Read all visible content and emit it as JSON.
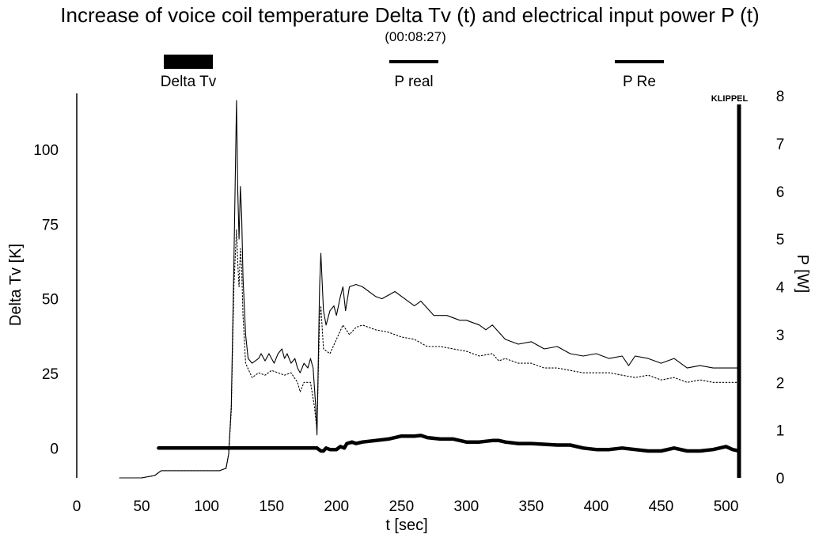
{
  "chart_data": {
    "type": "line",
    "title": "Increase of voice coil temperature Delta Tv (t) and electrical input power P (t)",
    "subtitle": "(00:08:27)",
    "brand": "KLIPPEL",
    "xlabel": "t [sec]",
    "ylabel_left": "Delta Tv [K]",
    "ylabel_right": "P [W]",
    "xlim": [
      0,
      510
    ],
    "ylim_left": [
      -10,
      118
    ],
    "ylim_right": [
      0,
      8
    ],
    "x_ticks": [
      0,
      50,
      100,
      150,
      200,
      250,
      300,
      350,
      400,
      450,
      500
    ],
    "y_left_ticks": [
      0,
      25,
      50,
      75,
      100
    ],
    "y_right_ticks": [
      0,
      1,
      2,
      3,
      4,
      5,
      6,
      7,
      8
    ],
    "legend": [
      {
        "name": "Delta Tv",
        "style": "thick"
      },
      {
        "name": "P real",
        "style": "thin"
      },
      {
        "name": "P Re",
        "style": "thin"
      }
    ],
    "series": [
      {
        "name": "Delta Tv",
        "axis": "left",
        "points": [
          [
            63,
            0
          ],
          [
            100,
            0
          ],
          [
            150,
            0
          ],
          [
            185,
            0
          ],
          [
            188,
            -1
          ],
          [
            190,
            -1
          ],
          [
            192,
            0
          ],
          [
            195,
            -0.5
          ],
          [
            200,
            -0.5
          ],
          [
            203,
            0.5
          ],
          [
            206,
            0
          ],
          [
            208,
            1.5
          ],
          [
            212,
            2
          ],
          [
            215,
            1.5
          ],
          [
            220,
            2
          ],
          [
            230,
            2.5
          ],
          [
            240,
            3
          ],
          [
            250,
            4
          ],
          [
            260,
            4
          ],
          [
            265,
            4.2
          ],
          [
            270,
            3.5
          ],
          [
            280,
            3
          ],
          [
            290,
            3
          ],
          [
            300,
            2
          ],
          [
            310,
            2
          ],
          [
            320,
            2.5
          ],
          [
            325,
            2.5
          ],
          [
            330,
            2
          ],
          [
            340,
            1.5
          ],
          [
            350,
            1.5
          ],
          [
            370,
            1
          ],
          [
            380,
            1
          ],
          [
            390,
            0
          ],
          [
            400,
            -0.5
          ],
          [
            410,
            -0.5
          ],
          [
            420,
            0
          ],
          [
            430,
            -0.5
          ],
          [
            440,
            -1
          ],
          [
            450,
            -1
          ],
          [
            460,
            0
          ],
          [
            470,
            -1
          ],
          [
            480,
            -1
          ],
          [
            490,
            -0.5
          ],
          [
            495,
            0
          ],
          [
            500,
            0.5
          ],
          [
            505,
            -0.5
          ],
          [
            510,
            -1
          ]
        ]
      },
      {
        "name": "P real",
        "axis": "right",
        "points": [
          [
            33,
            0
          ],
          [
            50,
            0
          ],
          [
            60,
            0.05
          ],
          [
            65,
            0.15
          ],
          [
            80,
            0.15
          ],
          [
            100,
            0.15
          ],
          [
            110,
            0.15
          ],
          [
            115,
            0.2
          ],
          [
            117,
            0.5
          ],
          [
            119,
            1.5
          ],
          [
            121,
            4.5
          ],
          [
            123,
            7.9
          ],
          [
            124,
            6.0
          ],
          [
            125,
            5.0
          ],
          [
            126,
            6.1
          ],
          [
            127,
            5.5
          ],
          [
            128,
            4.2
          ],
          [
            130,
            3.0
          ],
          [
            132,
            2.5
          ],
          [
            135,
            2.4
          ],
          [
            140,
            2.5
          ],
          [
            142,
            2.6
          ],
          [
            145,
            2.45
          ],
          [
            148,
            2.6
          ],
          [
            150,
            2.5
          ],
          [
            152,
            2.4
          ],
          [
            155,
            2.6
          ],
          [
            158,
            2.7
          ],
          [
            160,
            2.5
          ],
          [
            162,
            2.6
          ],
          [
            165,
            2.4
          ],
          [
            168,
            2.5
          ],
          [
            170,
            2.3
          ],
          [
            172,
            2.2
          ],
          [
            175,
            2.4
          ],
          [
            178,
            2.3
          ],
          [
            180,
            2.5
          ],
          [
            182,
            2.3
          ],
          [
            184,
            1.5
          ],
          [
            185,
            0.9
          ],
          [
            186,
            2.5
          ],
          [
            187,
            4.0
          ],
          [
            188,
            4.7
          ],
          [
            190,
            3.5
          ],
          [
            192,
            3.2
          ],
          [
            195,
            3.5
          ],
          [
            198,
            3.6
          ],
          [
            200,
            3.4
          ],
          [
            203,
            3.8
          ],
          [
            205,
            4.0
          ],
          [
            207,
            3.5
          ],
          [
            210,
            4.0
          ],
          [
            215,
            4.05
          ],
          [
            220,
            4.0
          ],
          [
            230,
            3.8
          ],
          [
            235,
            3.75
          ],
          [
            245,
            3.9
          ],
          [
            260,
            3.6
          ],
          [
            265,
            3.7
          ],
          [
            275,
            3.4
          ],
          [
            285,
            3.4
          ],
          [
            295,
            3.3
          ],
          [
            300,
            3.3
          ],
          [
            310,
            3.2
          ],
          [
            315,
            3.1
          ],
          [
            320,
            3.2
          ],
          [
            330,
            2.9
          ],
          [
            340,
            2.8
          ],
          [
            350,
            2.85
          ],
          [
            360,
            2.7
          ],
          [
            370,
            2.75
          ],
          [
            380,
            2.6
          ],
          [
            390,
            2.55
          ],
          [
            400,
            2.6
          ],
          [
            410,
            2.5
          ],
          [
            420,
            2.55
          ],
          [
            425,
            2.35
          ],
          [
            430,
            2.55
          ],
          [
            440,
            2.5
          ],
          [
            450,
            2.4
          ],
          [
            460,
            2.5
          ],
          [
            470,
            2.3
          ],
          [
            480,
            2.35
          ],
          [
            490,
            2.3
          ],
          [
            500,
            2.3
          ],
          [
            510,
            2.3
          ]
        ]
      },
      {
        "name": "P Re",
        "axis": "right",
        "points": [
          [
            33,
            0
          ],
          [
            50,
            0
          ],
          [
            60,
            0.05
          ],
          [
            65,
            0.15
          ],
          [
            80,
            0.15
          ],
          [
            100,
            0.15
          ],
          [
            110,
            0.15
          ],
          [
            115,
            0.2
          ],
          [
            117,
            0.5
          ],
          [
            119,
            1.4
          ],
          [
            121,
            4.0
          ],
          [
            123,
            5.2
          ],
          [
            124,
            4.5
          ],
          [
            125,
            4.0
          ],
          [
            126,
            4.8
          ],
          [
            127,
            4.4
          ],
          [
            128,
            3.4
          ],
          [
            130,
            2.4
          ],
          [
            135,
            2.1
          ],
          [
            140,
            2.2
          ],
          [
            145,
            2.15
          ],
          [
            150,
            2.25
          ],
          [
            155,
            2.2
          ],
          [
            160,
            2.15
          ],
          [
            165,
            2.2
          ],
          [
            170,
            2.0
          ],
          [
            172,
            1.8
          ],
          [
            175,
            2.0
          ],
          [
            180,
            2.0
          ],
          [
            183,
            1.5
          ],
          [
            185,
            1.0
          ],
          [
            186,
            2.2
          ],
          [
            187,
            3.3
          ],
          [
            188,
            3.6
          ],
          [
            190,
            2.7
          ],
          [
            195,
            2.6
          ],
          [
            200,
            2.9
          ],
          [
            205,
            3.2
          ],
          [
            210,
            3.0
          ],
          [
            215,
            3.15
          ],
          [
            220,
            3.2
          ],
          [
            230,
            3.1
          ],
          [
            240,
            3.05
          ],
          [
            250,
            2.95
          ],
          [
            260,
            2.9
          ],
          [
            270,
            2.75
          ],
          [
            280,
            2.75
          ],
          [
            290,
            2.7
          ],
          [
            300,
            2.65
          ],
          [
            310,
            2.55
          ],
          [
            320,
            2.6
          ],
          [
            325,
            2.45
          ],
          [
            330,
            2.5
          ],
          [
            340,
            2.4
          ],
          [
            350,
            2.4
          ],
          [
            360,
            2.3
          ],
          [
            370,
            2.3
          ],
          [
            380,
            2.25
          ],
          [
            390,
            2.2
          ],
          [
            400,
            2.2
          ],
          [
            410,
            2.2
          ],
          [
            420,
            2.15
          ],
          [
            430,
            2.1
          ],
          [
            440,
            2.15
          ],
          [
            450,
            2.05
          ],
          [
            460,
            2.1
          ],
          [
            470,
            2.0
          ],
          [
            480,
            2.05
          ],
          [
            490,
            2.0
          ],
          [
            500,
            2.0
          ],
          [
            510,
            2.0
          ]
        ]
      }
    ]
  }
}
